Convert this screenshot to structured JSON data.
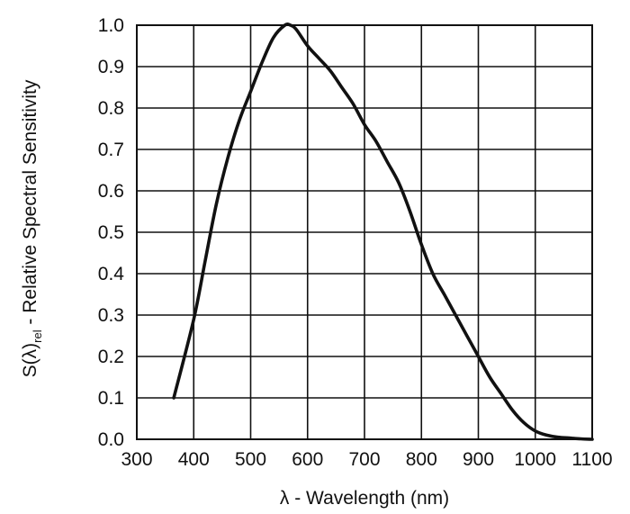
{
  "chart_data": {
    "type": "line",
    "xlabel": "λ - Wavelength (nm)",
    "ylabel": {
      "prefix": "S(λ)",
      "subscript": "rel",
      "suffix": " - Relative Spectral Sensitivity"
    },
    "xlim": [
      300,
      1100
    ],
    "ylim": [
      0,
      1.0
    ],
    "x_ticks": [
      300,
      400,
      500,
      600,
      700,
      800,
      900,
      1000,
      1100
    ],
    "y_ticks": [
      "0.0",
      "0.1",
      "0.2",
      "0.3",
      "0.4",
      "0.5",
      "0.6",
      "0.7",
      "0.8",
      "0.9",
      "1.0"
    ],
    "grid": true,
    "series": [
      {
        "x": [
          365,
          400,
          420,
          440,
          460,
          480,
          500,
          520,
          540,
          560,
          570,
          580,
          600,
          620,
          640,
          660,
          680,
          700,
          720,
          740,
          760,
          780,
          800,
          820,
          840,
          860,
          880,
          900,
          920,
          940,
          960,
          980,
          1000,
          1020,
          1040,
          1060,
          1080,
          1100
        ],
        "y": [
          0.1,
          0.29,
          0.43,
          0.57,
          0.68,
          0.77,
          0.84,
          0.91,
          0.97,
          1.0,
          1.0,
          0.99,
          0.95,
          0.92,
          0.89,
          0.85,
          0.81,
          0.76,
          0.72,
          0.67,
          0.62,
          0.55,
          0.47,
          0.4,
          0.35,
          0.3,
          0.25,
          0.2,
          0.15,
          0.11,
          0.07,
          0.04,
          0.02,
          0.01,
          0.005,
          0.003,
          0.001,
          0.0
        ]
      }
    ]
  }
}
